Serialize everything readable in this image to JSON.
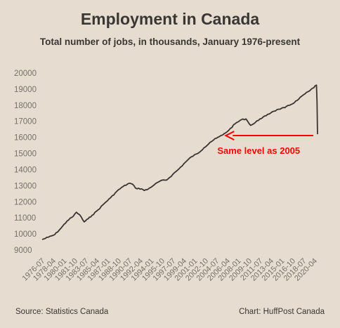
{
  "chart_data": {
    "type": "line",
    "title": "Employment in Canada",
    "subtitle": "Total number of jobs, in thousands, January 1976-present",
    "ylim": [
      9000,
      20000
    ],
    "y_ticks": [
      9000,
      10000,
      11000,
      12000,
      13000,
      14000,
      15000,
      16000,
      17000,
      18000,
      19000,
      20000
    ],
    "x_range": [
      "1976-01",
      "2020-04"
    ],
    "x_tick_labels": [
      "1976-07",
      "1978-04",
      "1980-01",
      "1981-10",
      "1983-07",
      "1985-04",
      "1987-01",
      "1988-10",
      "1990-07",
      "1992-04",
      "1994-01",
      "1995-10",
      "1997-07",
      "1999-04",
      "2001-01",
      "2002-10",
      "2004-07",
      "2006-04",
      "2008-01",
      "2009-10",
      "2011-07",
      "2013-04",
      "2015-01",
      "2016-10",
      "2018-07",
      "2020-04"
    ],
    "grid": false,
    "line_color": "#3a3431",
    "series": [
      {
        "points": [
          [
            "1976-01",
            9650
          ],
          [
            "1977-01",
            9800
          ],
          [
            "1978-01",
            9950
          ],
          [
            "1979-01",
            10350
          ],
          [
            "1980-01",
            10800
          ],
          [
            "1981-01",
            11100
          ],
          [
            "1981-07",
            11350
          ],
          [
            "1982-01",
            11200
          ],
          [
            "1982-10",
            10750
          ],
          [
            "1983-06",
            10950
          ],
          [
            "1984-01",
            11150
          ],
          [
            "1985-01",
            11500
          ],
          [
            "1986-01",
            11900
          ],
          [
            "1987-01",
            12250
          ],
          [
            "1988-01",
            12650
          ],
          [
            "1989-01",
            12950
          ],
          [
            "1990-01",
            13150
          ],
          [
            "1990-07",
            13100
          ],
          [
            "1991-01",
            12850
          ],
          [
            "1992-01",
            12800
          ],
          [
            "1992-06",
            12700
          ],
          [
            "1993-01",
            12780
          ],
          [
            "1994-01",
            13050
          ],
          [
            "1995-01",
            13300
          ],
          [
            "1996-01",
            13350
          ],
          [
            "1997-01",
            13700
          ],
          [
            "1998-01",
            14050
          ],
          [
            "1999-01",
            14450
          ],
          [
            "2000-01",
            14800
          ],
          [
            "2001-01",
            15000
          ],
          [
            "2002-01",
            15350
          ],
          [
            "2003-01",
            15700
          ],
          [
            "2004-01",
            15950
          ],
          [
            "2005-01",
            16150
          ],
          [
            "2006-01",
            16450
          ],
          [
            "2007-01",
            16850
          ],
          [
            "2008-01",
            17100
          ],
          [
            "2008-10",
            17150
          ],
          [
            "2009-07",
            16750
          ],
          [
            "2010-01",
            16850
          ],
          [
            "2011-01",
            17150
          ],
          [
            "2012-01",
            17350
          ],
          [
            "2013-01",
            17600
          ],
          [
            "2014-01",
            17750
          ],
          [
            "2015-01",
            17850
          ],
          [
            "2016-01",
            18050
          ],
          [
            "2017-01",
            18300
          ],
          [
            "2018-01",
            18650
          ],
          [
            "2019-01",
            18900
          ],
          [
            "2020-02",
            19250
          ],
          [
            "2020-03",
            18200
          ],
          [
            "2020-04",
            16200
          ]
        ]
      }
    ],
    "annotation": {
      "text": "Same level as 2005",
      "value": 16200,
      "color": "#ff0000"
    }
  },
  "footer": {
    "source": "Source: Statistics Canada",
    "credit": "Chart: HuffPost Canada"
  }
}
